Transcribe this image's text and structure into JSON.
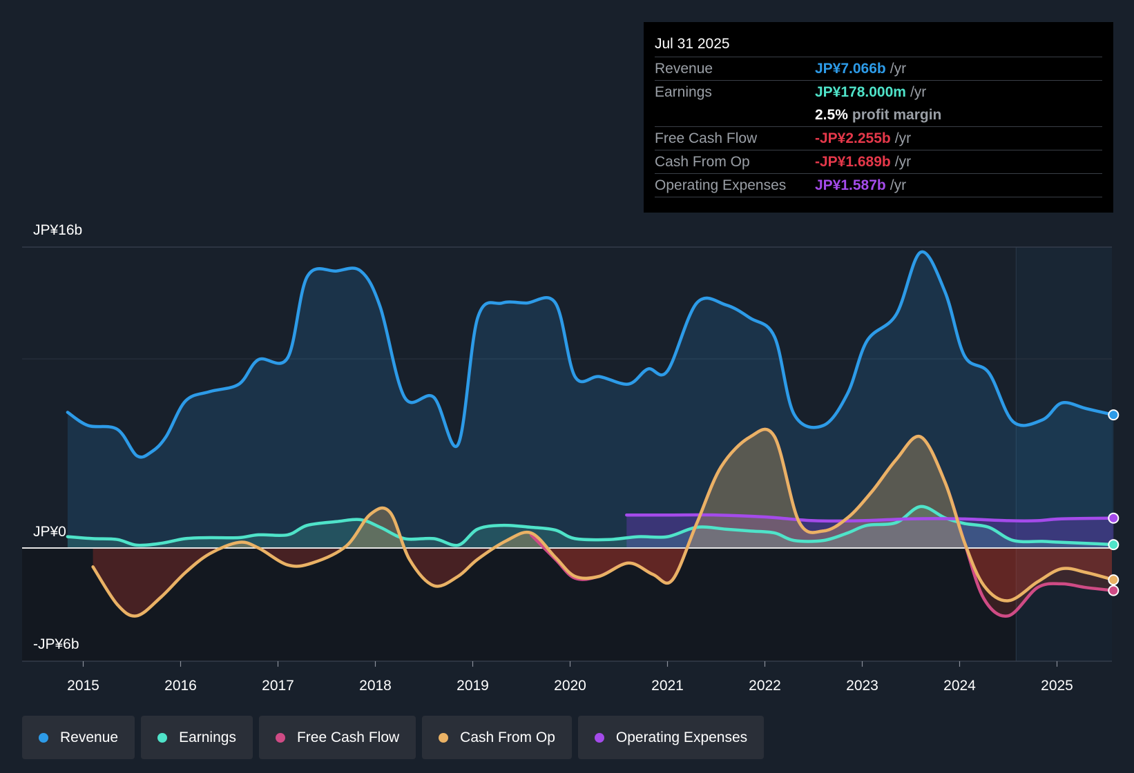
{
  "chart_data": {
    "type": "line",
    "currency": "JP¥",
    "x_ticks": [
      "2015",
      "2016",
      "2017",
      "2018",
      "2019",
      "2020",
      "2021",
      "2022",
      "2023",
      "2024",
      "2025"
    ],
    "y_labels": {
      "top": "JP¥16b",
      "zero": "JP¥0",
      "bottom": "-JP¥6b"
    },
    "ylim": [
      -6,
      16
    ],
    "xlim": [
      2014.84,
      2025.58
    ],
    "forecast_start": 2024.58,
    "series": [
      {
        "name": "Revenue",
        "key": "revenue",
        "color": "#2d9be8",
        "points": [
          [
            2014.84,
            7.2
          ],
          [
            2015.05,
            6.5
          ],
          [
            2015.35,
            6.3
          ],
          [
            2015.55,
            4.9
          ],
          [
            2015.7,
            5.1
          ],
          [
            2015.85,
            5.9
          ],
          [
            2016.05,
            7.8
          ],
          [
            2016.3,
            8.3
          ],
          [
            2016.6,
            8.7
          ],
          [
            2016.8,
            10.0
          ],
          [
            2017.1,
            10.1
          ],
          [
            2017.3,
            14.4
          ],
          [
            2017.6,
            14.7
          ],
          [
            2017.85,
            14.7
          ],
          [
            2018.05,
            12.8
          ],
          [
            2018.3,
            8.0
          ],
          [
            2018.6,
            8.0
          ],
          [
            2018.85,
            5.5
          ],
          [
            2019.05,
            12.2
          ],
          [
            2019.3,
            13.0
          ],
          [
            2019.55,
            13.0
          ],
          [
            2019.85,
            13.0
          ],
          [
            2020.05,
            9.1
          ],
          [
            2020.3,
            9.1
          ],
          [
            2020.6,
            8.7
          ],
          [
            2020.8,
            9.5
          ],
          [
            2021.0,
            9.4
          ],
          [
            2021.3,
            13.0
          ],
          [
            2021.6,
            12.9
          ],
          [
            2021.85,
            12.2
          ],
          [
            2022.1,
            11.2
          ],
          [
            2022.3,
            7.1
          ],
          [
            2022.6,
            6.5
          ],
          [
            2022.85,
            8.2
          ],
          [
            2023.05,
            11.0
          ],
          [
            2023.35,
            12.4
          ],
          [
            2023.6,
            15.7
          ],
          [
            2023.85,
            13.6
          ],
          [
            2024.05,
            10.2
          ],
          [
            2024.3,
            9.3
          ],
          [
            2024.55,
            6.7
          ],
          [
            2024.85,
            6.8
          ],
          [
            2025.05,
            7.7
          ],
          [
            2025.3,
            7.4
          ],
          [
            2025.58,
            7.066
          ]
        ]
      },
      {
        "name": "Earnings",
        "key": "earnings",
        "color": "#4fe3c9",
        "points": [
          [
            2014.84,
            0.6
          ],
          [
            2015.1,
            0.5
          ],
          [
            2015.35,
            0.45
          ],
          [
            2015.55,
            0.15
          ],
          [
            2015.8,
            0.25
          ],
          [
            2016.05,
            0.5
          ],
          [
            2016.3,
            0.55
          ],
          [
            2016.6,
            0.55
          ],
          [
            2016.8,
            0.7
          ],
          [
            2017.1,
            0.7
          ],
          [
            2017.3,
            1.2
          ],
          [
            2017.6,
            1.4
          ],
          [
            2017.85,
            1.5
          ],
          [
            2018.05,
            1.1
          ],
          [
            2018.3,
            0.5
          ],
          [
            2018.6,
            0.5
          ],
          [
            2018.85,
            0.15
          ],
          [
            2019.05,
            1.0
          ],
          [
            2019.3,
            1.2
          ],
          [
            2019.6,
            1.1
          ],
          [
            2019.85,
            0.95
          ],
          [
            2020.05,
            0.5
          ],
          [
            2020.4,
            0.45
          ],
          [
            2020.7,
            0.6
          ],
          [
            2021.0,
            0.6
          ],
          [
            2021.3,
            1.1
          ],
          [
            2021.6,
            1.0
          ],
          [
            2021.85,
            0.9
          ],
          [
            2022.1,
            0.8
          ],
          [
            2022.3,
            0.4
          ],
          [
            2022.6,
            0.4
          ],
          [
            2022.85,
            0.8
          ],
          [
            2023.05,
            1.2
          ],
          [
            2023.35,
            1.35
          ],
          [
            2023.6,
            2.2
          ],
          [
            2023.85,
            1.6
          ],
          [
            2024.05,
            1.3
          ],
          [
            2024.3,
            1.1
          ],
          [
            2024.55,
            0.4
          ],
          [
            2024.85,
            0.35
          ],
          [
            2025.05,
            0.3
          ],
          [
            2025.3,
            0.25
          ],
          [
            2025.58,
            0.178
          ]
        ]
      },
      {
        "name": "Free Cash Flow",
        "key": "fcf",
        "color": "#cf4b85",
        "points": [
          [
            2019.6,
            0.7
          ],
          [
            2019.85,
            -0.6
          ],
          [
            2020.05,
            -1.6
          ],
          [
            2020.3,
            -1.5
          ],
          [
            2020.6,
            -0.8
          ],
          [
            2020.85,
            -1.4
          ],
          [
            2021.05,
            -1.7
          ],
          [
            2021.3,
            1.3
          ],
          [
            2021.55,
            4.3
          ],
          [
            2021.85,
            5.9
          ],
          [
            2022.1,
            5.9
          ],
          [
            2022.35,
            1.4
          ],
          [
            2022.6,
            0.9
          ],
          [
            2022.85,
            1.6
          ],
          [
            2023.1,
            3.0
          ],
          [
            2023.35,
            4.7
          ],
          [
            2023.6,
            5.9
          ],
          [
            2023.85,
            3.5
          ],
          [
            2024.05,
            0.3
          ],
          [
            2024.25,
            -2.7
          ],
          [
            2024.5,
            -3.6
          ],
          [
            2024.8,
            -2.1
          ],
          [
            2025.05,
            -1.9
          ],
          [
            2025.3,
            -2.1
          ],
          [
            2025.58,
            -2.255
          ]
        ]
      },
      {
        "name": "Cash From Op",
        "key": "cfo",
        "color": "#eab265",
        "points": [
          [
            2015.1,
            -1.0
          ],
          [
            2015.35,
            -3.0
          ],
          [
            2015.55,
            -3.6
          ],
          [
            2015.8,
            -2.6
          ],
          [
            2016.05,
            -1.3
          ],
          [
            2016.3,
            -0.3
          ],
          [
            2016.6,
            0.3
          ],
          [
            2016.8,
            0.0
          ],
          [
            2017.1,
            -0.9
          ],
          [
            2017.35,
            -0.8
          ],
          [
            2017.7,
            0.1
          ],
          [
            2017.95,
            1.8
          ],
          [
            2018.15,
            1.9
          ],
          [
            2018.35,
            -0.6
          ],
          [
            2018.6,
            -2.0
          ],
          [
            2018.85,
            -1.5
          ],
          [
            2019.05,
            -0.6
          ],
          [
            2019.35,
            0.4
          ],
          [
            2019.6,
            0.8
          ],
          [
            2019.85,
            -0.5
          ],
          [
            2020.05,
            -1.5
          ],
          [
            2020.3,
            -1.5
          ],
          [
            2020.6,
            -0.8
          ],
          [
            2020.85,
            -1.4
          ],
          [
            2021.05,
            -1.7
          ],
          [
            2021.3,
            1.3
          ],
          [
            2021.55,
            4.3
          ],
          [
            2021.85,
            5.9
          ],
          [
            2022.1,
            5.9
          ],
          [
            2022.35,
            1.4
          ],
          [
            2022.6,
            0.9
          ],
          [
            2022.85,
            1.6
          ],
          [
            2023.1,
            3.0
          ],
          [
            2023.35,
            4.7
          ],
          [
            2023.6,
            5.9
          ],
          [
            2023.85,
            3.5
          ],
          [
            2024.05,
            0.3
          ],
          [
            2024.25,
            -2.0
          ],
          [
            2024.5,
            -2.8
          ],
          [
            2024.8,
            -1.8
          ],
          [
            2025.05,
            -1.1
          ],
          [
            2025.3,
            -1.3
          ],
          [
            2025.58,
            -1.689
          ]
        ]
      },
      {
        "name": "Operating Expenses",
        "key": "opex",
        "color": "#a44bea",
        "points": [
          [
            2020.58,
            1.75
          ],
          [
            2021.0,
            1.75
          ],
          [
            2021.5,
            1.75
          ],
          [
            2022.0,
            1.65
          ],
          [
            2022.5,
            1.45
          ],
          [
            2023.0,
            1.45
          ],
          [
            2023.5,
            1.55
          ],
          [
            2024.0,
            1.55
          ],
          [
            2024.5,
            1.45
          ],
          [
            2024.8,
            1.45
          ],
          [
            2025.05,
            1.55
          ],
          [
            2025.58,
            1.587
          ]
        ]
      }
    ]
  },
  "tooltip": {
    "date": "Jul 31 2025",
    "rows": [
      {
        "label": "Revenue",
        "value": "JP¥7.066b",
        "unit": "/yr",
        "color": "#2d9be8"
      },
      {
        "label": "Earnings",
        "value": "JP¥178.000m",
        "unit": "/yr",
        "color": "#4fe3c9"
      },
      {
        "label": "",
        "value": "2.5%",
        "unit": "profit margin",
        "color": "#ffffff"
      },
      {
        "label": "Free Cash Flow",
        "value": "-JP¥2.255b",
        "unit": "/yr",
        "color": "#e5384a"
      },
      {
        "label": "Cash From Op",
        "value": "-JP¥1.689b",
        "unit": "/yr",
        "color": "#e5384a"
      },
      {
        "label": "Operating Expenses",
        "value": "JP¥1.587b",
        "unit": "/yr",
        "color": "#a44bea"
      }
    ]
  },
  "legend": [
    {
      "label": "Revenue",
      "color": "#2d9be8"
    },
    {
      "label": "Earnings",
      "color": "#4fe3c9"
    },
    {
      "label": "Free Cash Flow",
      "color": "#cf4b85"
    },
    {
      "label": "Cash From Op",
      "color": "#eab265"
    },
    {
      "label": "Operating Expenses",
      "color": "#a44bea"
    }
  ]
}
